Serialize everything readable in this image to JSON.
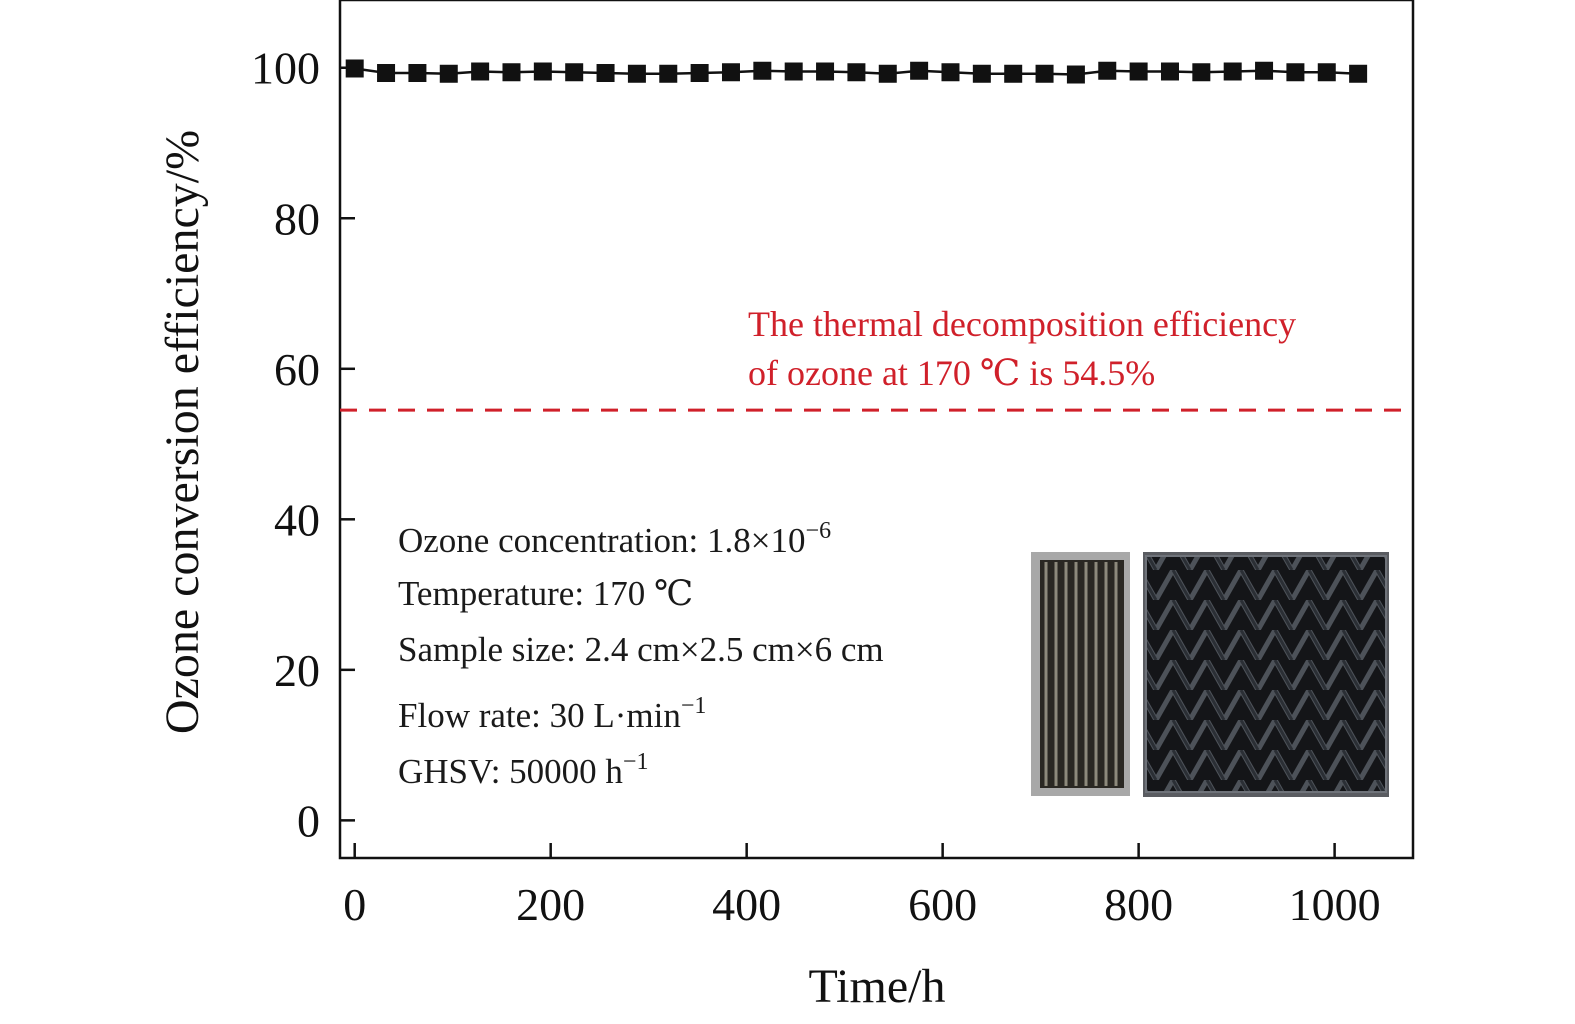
{
  "chart_data": {
    "type": "line",
    "xlabel": "Time/h",
    "ylabel": "Ozone conversion efficiency/%",
    "xlim": [
      -15,
      1080
    ],
    "ylim": [
      -5,
      109
    ],
    "x_ticks": [
      0,
      200,
      400,
      600,
      800,
      1000
    ],
    "y_ticks": [
      0,
      20,
      40,
      60,
      80,
      100
    ],
    "grid": false,
    "series": [
      {
        "x": [
          0,
          32,
          64,
          96,
          128,
          160,
          192,
          224,
          256,
          288,
          320,
          352,
          384,
          416,
          448,
          480,
          512,
          544,
          576,
          608,
          640,
          672,
          704,
          736,
          768,
          800,
          832,
          864,
          896,
          928,
          960,
          992,
          1024
        ],
        "values": [
          99.9,
          99.3,
          99.3,
          99.2,
          99.5,
          99.4,
          99.5,
          99.4,
          99.3,
          99.2,
          99.2,
          99.3,
          99.4,
          99.6,
          99.5,
          99.5,
          99.4,
          99.2,
          99.6,
          99.4,
          99.2,
          99.2,
          99.2,
          99.1,
          99.6,
          99.5,
          99.5,
          99.4,
          99.5,
          99.6,
          99.4,
          99.4,
          99.2
        ],
        "color": "#111111",
        "marker": "square"
      }
    ],
    "reference_line": {
      "y": 54.5,
      "style": "dashed",
      "color": "#d0202a",
      "label_lines": [
        "The thermal decomposition efficiency",
        "of ozone at 170 ℃ is 54.5%"
      ]
    },
    "conditions": [
      {
        "text": "Ozone concentration: 1.8×10",
        "sup": "−6"
      },
      {
        "text": "Temperature: 170 ℃",
        "sup": ""
      },
      {
        "text": "Sample size: 2.4 cm×2.5 cm×6 cm",
        "sup": ""
      },
      {
        "text": "Flow rate: 30 L·min",
        "sup": "−1"
      },
      {
        "text": "GHSV: 50000 h",
        "sup": "−1"
      }
    ]
  }
}
